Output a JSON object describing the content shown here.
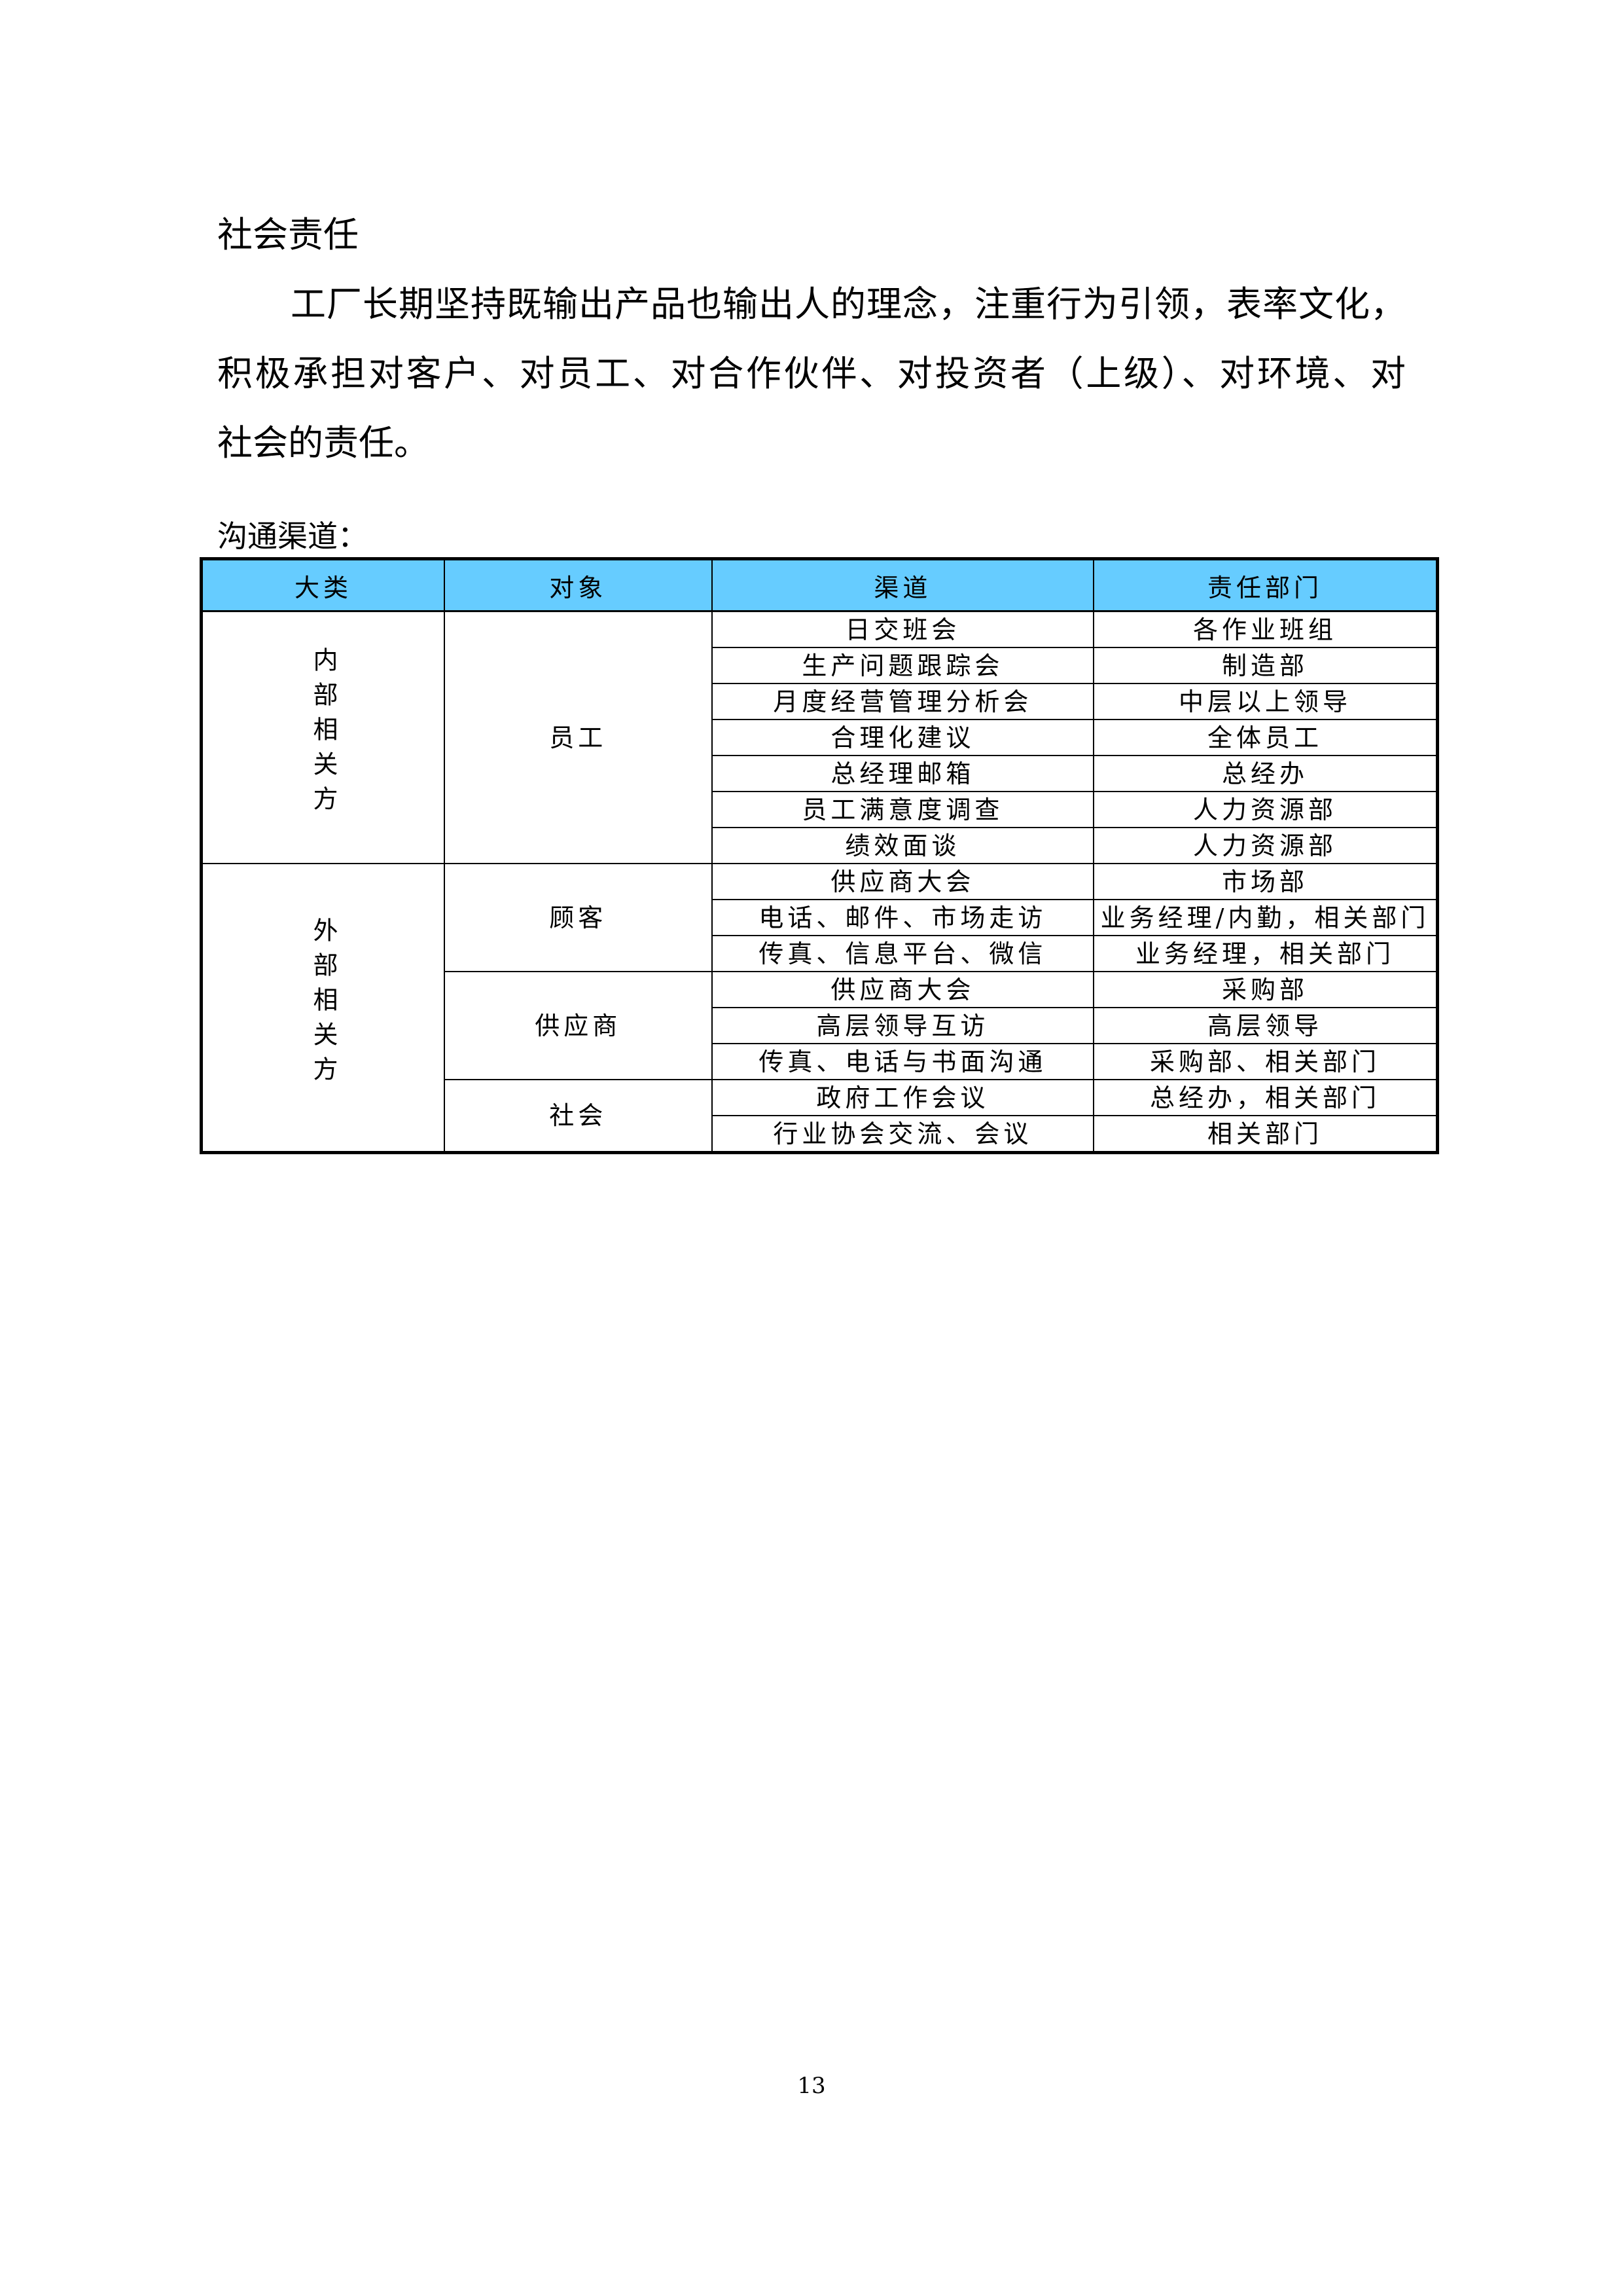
{
  "heading": "社会责任",
  "paragraph_lines": [
    "工厂长期坚持既输出产品也输出人的理念，注重行为引领，表率文化，",
    "积极承担对客户、对员工、对合作伙伴、对投资者（上级）、对环境、对",
    "社会的责任。"
  ],
  "table_caption": "沟通渠道：",
  "table": {
    "header_bg": "#66ccff",
    "headers": [
      "大类",
      "对象",
      "渠道",
      "责任部门"
    ],
    "groups": [
      {
        "category": "内部相关方",
        "category_chars": [
          "内",
          "部",
          "相",
          "关",
          "方"
        ],
        "targets": [
          {
            "target": "员工",
            "rows": [
              {
                "channel": "日交班会",
                "dept": "各作业班组"
              },
              {
                "channel": "生产问题跟踪会",
                "dept": "制造部"
              },
              {
                "channel": "月度经营管理分析会",
                "dept": "中层以上领导"
              },
              {
                "channel": "合理化建议",
                "dept": "全体员工"
              },
              {
                "channel": "总经理邮箱",
                "dept": "总经办"
              },
              {
                "channel": "员工满意度调查",
                "dept": "人力资源部"
              },
              {
                "channel": "绩效面谈",
                "dept": "人力资源部"
              }
            ]
          }
        ]
      },
      {
        "category": "外部相关方",
        "category_chars": [
          "外",
          "部",
          "相",
          "关",
          "方"
        ],
        "targets": [
          {
            "target": "顾客",
            "rows": [
              {
                "channel": "供应商大会",
                "dept": "市场部"
              },
              {
                "channel": "电话、邮件、市场走访",
                "dept": "业务经理/内勤，相关部门"
              },
              {
                "channel": "传真、信息平台、微信",
                "dept": "业务经理，相关部门"
              }
            ]
          },
          {
            "target": "供应商",
            "rows": [
              {
                "channel": "供应商大会",
                "dept": "采购部"
              },
              {
                "channel": "高层领导互访",
                "dept": "高层领导"
              },
              {
                "channel": "传真、电话与书面沟通",
                "dept": "采购部、相关部门"
              }
            ]
          },
          {
            "target": "社会",
            "rows": [
              {
                "channel": "政府工作会议",
                "dept": "总经办，相关部门"
              },
              {
                "channel": "行业协会交流、会议",
                "dept": "相关部门"
              }
            ]
          }
        ]
      }
    ]
  },
  "page_number": "13"
}
